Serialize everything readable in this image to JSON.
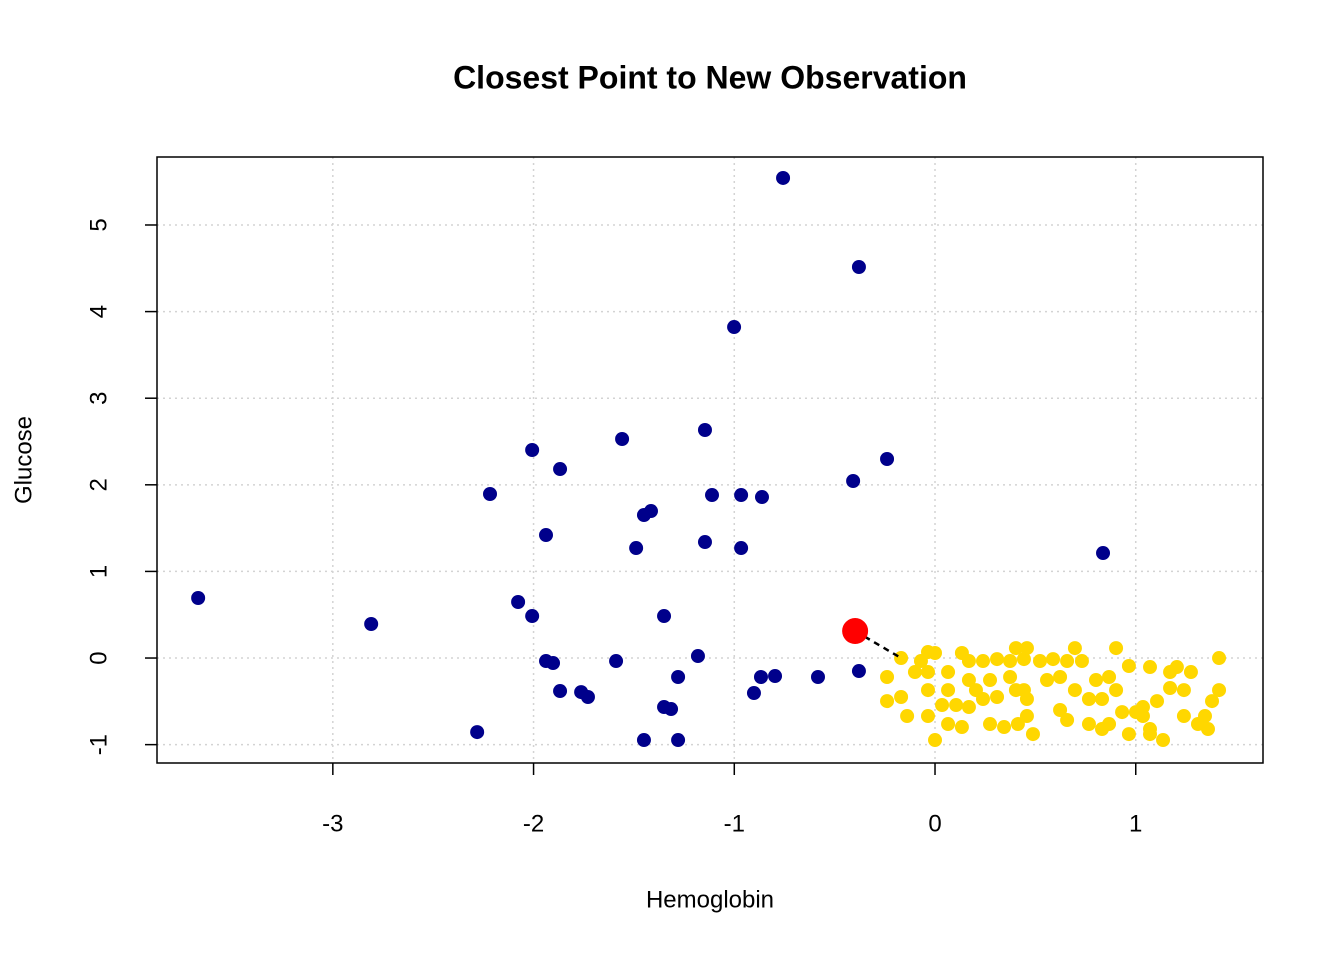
{
  "chart_data": {
    "type": "scatter",
    "title": "Closest Point to New Observation",
    "x_label": "Hemoglobin",
    "y_label": "Glucose",
    "xlim": [
      -3.876,
      1.634
    ],
    "ylim": [
      -1.212,
      5.785
    ],
    "xticks": [
      -3,
      -2,
      -1,
      0,
      1
    ],
    "yticks": [
      -1,
      0,
      1,
      2,
      3,
      4,
      5
    ],
    "grid": true,
    "series": [
      {
        "color": "#00008B",
        "x": [
          -0.757,
          -0.379,
          -1.001,
          -1.559,
          -1.146,
          -2.007,
          -0.239,
          -1.868,
          -2.217,
          -1.111,
          -0.966,
          -0.862,
          -0.408,
          -1.415,
          -1.45,
          -1.938,
          -1.489,
          -1.146,
          -0.966,
          0.837,
          -3.671,
          -2.809,
          -2.077,
          -2.007,
          -1.35,
          -1.181,
          -1.938,
          -1.903,
          -1.589,
          -0.797,
          -0.867,
          -0.583,
          -0.379,
          -1.28,
          -1.868,
          -1.763,
          -1.729,
          -0.902,
          -1.35,
          -1.315,
          -2.281,
          -1.45,
          -1.28
        ],
        "values": [
          5.543,
          4.515,
          3.822,
          2.529,
          2.633,
          2.402,
          2.298,
          2.182,
          1.894,
          1.882,
          1.882,
          1.859,
          2.044,
          1.697,
          1.651,
          1.42,
          1.27,
          1.339,
          1.27,
          1.212,
          0.693,
          0.393,
          0.647,
          0.485,
          0.485,
          0.023,
          -0.035,
          -0.058,
          -0.035,
          -0.208,
          -0.219,
          -0.219,
          -0.15,
          -0.219,
          -0.381,
          -0.393,
          -0.45,
          -0.404,
          -0.566,
          -0.589,
          -0.855,
          -0.947,
          -0.947
        ]
      },
      {
        "color": "#FFD700",
        "x": [
          -0.239,
          -0.239,
          -0.169,
          -0.169,
          -0.139,
          -0.1,
          -0.07,
          -0.035,
          -0.035,
          -0.035,
          -0.035,
          0,
          0,
          0.035,
          0.065,
          0.065,
          0.065,
          0.105,
          0.134,
          0.134,
          0.169,
          0.169,
          0.169,
          0.204,
          0.239,
          0.239,
          0.274,
          0.274,
          0.309,
          0.309,
          0.344,
          0.374,
          0.374,
          0.403,
          0.403,
          0.413,
          0.443,
          0.443,
          0.458,
          0.458,
          0.458,
          0.488,
          0.523,
          0.558,
          0.588,
          0.623,
          0.623,
          0.658,
          0.658,
          0.697,
          0.697,
          0.732,
          0.767,
          0.767,
          0.802,
          0.832,
          0.832,
          0.867,
          0.867,
          0.902,
          0.902,
          0.932,
          0.966,
          0.966,
          1.001,
          1.036,
          1.036,
          1.071,
          1.071,
          1.106,
          1.136,
          1.171,
          1.171,
          1.205,
          1.24,
          1.24,
          1.275,
          1.31,
          1.345,
          1.38,
          1.415,
          1.415,
          1.36,
          1.071
        ],
        "values": [
          -0.219,
          -0.497,
          0,
          -0.45,
          -0.67,
          -0.162,
          -0.035,
          0.069,
          -0.162,
          -0.37,
          -0.67,
          0.058,
          -0.947,
          -0.543,
          -0.162,
          -0.37,
          -0.762,
          -0.543,
          0.058,
          -0.797,
          -0.035,
          -0.254,
          -0.566,
          -0.37,
          -0.035,
          -0.473,
          -0.254,
          -0.762,
          -0.012,
          -0.45,
          -0.797,
          -0.035,
          -0.219,
          0.115,
          -0.37,
          -0.762,
          -0.012,
          -0.37,
          0.115,
          -0.473,
          -0.67,
          -0.878,
          -0.035,
          -0.254,
          -0.012,
          -0.6,
          -0.219,
          -0.035,
          -0.716,
          0.115,
          -0.37,
          -0.035,
          -0.473,
          -0.762,
          -0.254,
          -0.82,
          -0.473,
          -0.219,
          -0.762,
          0.115,
          -0.37,
          -0.624,
          -0.092,
          -0.878,
          -0.624,
          -0.566,
          -0.67,
          -0.82,
          -0.104,
          -0.497,
          -0.947,
          -0.162,
          -0.346,
          -0.104,
          -0.67,
          -0.37,
          -0.162,
          -0.762,
          -0.67,
          -0.497,
          0,
          -0.37,
          -0.82,
          -0.878
        ]
      }
    ],
    "new_observation": {
      "color": "#FF0000",
      "x": -0.398,
      "y": 0.312
    }
  }
}
